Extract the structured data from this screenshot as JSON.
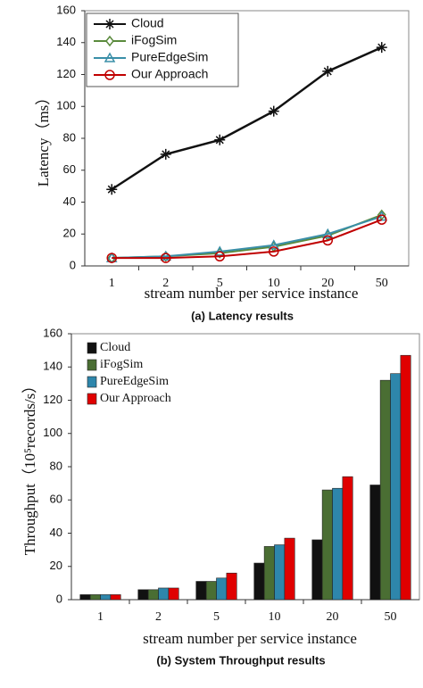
{
  "chart_data": [
    {
      "type": "line",
      "caption": "(a) Latency results",
      "x_label": "stream number per service instance",
      "y_label": "Latency（ms）",
      "categories": [
        "1",
        "2",
        "5",
        "10",
        "20",
        "50"
      ],
      "ylim": [
        0,
        160
      ],
      "yticks": [
        0,
        20,
        40,
        60,
        80,
        100,
        120,
        140,
        160
      ],
      "grid": false,
      "legend": "upper left",
      "series": [
        {
          "name": "Cloud",
          "color": "#111111",
          "marker": "star",
          "values": [
            48,
            70,
            79,
            97,
            122,
            137
          ]
        },
        {
          "name": "iFogSim",
          "color": "#5a8a3c",
          "marker": "diamond",
          "values": [
            5,
            6,
            8,
            12,
            19,
            32
          ]
        },
        {
          "name": "PureEdgeSim",
          "color": "#3a8fa8",
          "marker": "triangle",
          "values": [
            5,
            6,
            9,
            13,
            20,
            31
          ]
        },
        {
          "name": "Our Approach",
          "color": "#c00000",
          "marker": "circle",
          "values": [
            5,
            5,
            6,
            9,
            16,
            29
          ]
        }
      ]
    },
    {
      "type": "bar",
      "caption": "(b) System Throughput results",
      "x_label": "stream number per service instance",
      "y_label": "Throughput（10⁵records/s）",
      "categories": [
        "1",
        "2",
        "5",
        "10",
        "20",
        "50"
      ],
      "ylim": [
        0,
        160
      ],
      "yticks": [
        0,
        20,
        40,
        60,
        80,
        100,
        120,
        140,
        160
      ],
      "grid": false,
      "legend": "upper left",
      "series": [
        {
          "name": "Cloud",
          "color": "#111111",
          "values": [
            3,
            6,
            11,
            22,
            36,
            69
          ]
        },
        {
          "name": "iFogSim",
          "color": "#4a6e33",
          "values": [
            3,
            6,
            11,
            32,
            66,
            132
          ]
        },
        {
          "name": "PureEdgeSim",
          "color": "#2e86ab",
          "values": [
            3,
            7,
            13,
            33,
            67,
            136
          ]
        },
        {
          "name": "Our Approach",
          "color": "#e00000",
          "values": [
            3,
            7,
            16,
            37,
            74,
            147
          ]
        }
      ]
    }
  ]
}
